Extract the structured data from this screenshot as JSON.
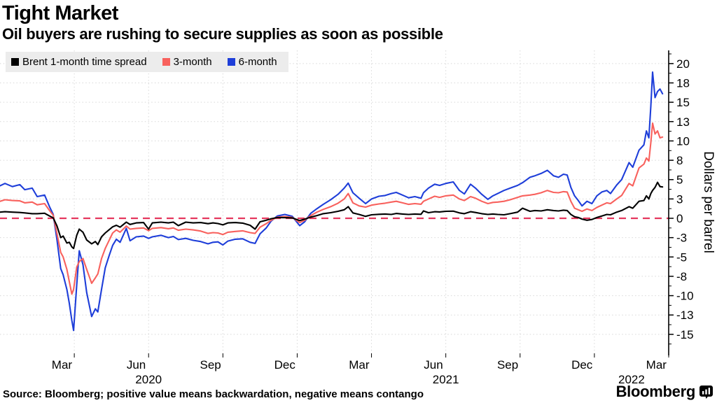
{
  "header": {
    "title": "Tight Market",
    "subtitle": "Oil buyers are rushing to secure supplies as soon as possible"
  },
  "legend": {
    "items": [
      {
        "label": "Brent 1-month time spread",
        "color": "#000000"
      },
      {
        "label": "3-month",
        "color": "#f8615d"
      },
      {
        "label": "6-month",
        "color": "#1e3ed9"
      }
    ]
  },
  "footer": {
    "source": "Source: Bloomberg; positive value means backwardation, negative means contango",
    "brand": "Bloomberg"
  },
  "chart_data": {
    "type": "line",
    "title": "Tight Market",
    "subtitle": "Oil buyers are rushing to secure supplies as soon as possible",
    "xlabel": "",
    "ylabel": "Dollars per barrel",
    "x_unit": "months since Jan 2020 (0 = Jan 2020, 26.75 = late Mar 2022)",
    "xlim": [
      0,
      27
    ],
    "ylim": [
      -17.4,
      21.4
    ],
    "grid": "dotted",
    "legend_position": "top-left",
    "zero_line": {
      "value": 0,
      "style": "dashed",
      "color": "#e5385e"
    },
    "y_ticks": [
      {
        "value": 20,
        "label": "20"
      },
      {
        "value": 17.5,
        "label": "18"
      },
      {
        "value": 15,
        "label": "15"
      },
      {
        "value": 12.5,
        "label": "13"
      },
      {
        "value": 10,
        "label": "10"
      },
      {
        "value": 7.5,
        "label": "8"
      },
      {
        "value": 5,
        "label": "5"
      },
      {
        "value": 2.5,
        "label": "3"
      },
      {
        "value": 0,
        "label": "0"
      },
      {
        "value": -2.5,
        "label": "-3"
      },
      {
        "value": -5,
        "label": "-5"
      },
      {
        "value": -7.5,
        "label": "-8"
      },
      {
        "value": -10,
        "label": "-10"
      },
      {
        "value": -12.5,
        "label": "-13"
      },
      {
        "value": -15,
        "label": "-15"
      }
    ],
    "x_ticks": [
      {
        "t": 2.5,
        "label": "Mar"
      },
      {
        "t": 5.5,
        "label": "Jun"
      },
      {
        "t": 8.5,
        "label": "Sep"
      },
      {
        "t": 11.5,
        "label": "Dec"
      },
      {
        "t": 14.5,
        "label": "Mar"
      },
      {
        "t": 17.5,
        "label": "Jun"
      },
      {
        "t": 20.5,
        "label": "Sep"
      },
      {
        "t": 23.5,
        "label": "Dec"
      },
      {
        "t": 26.5,
        "label": "Mar"
      }
    ],
    "year_labels": [
      {
        "t": 6,
        "label": "2020"
      },
      {
        "t": 18,
        "label": "2021"
      },
      {
        "t": 25.5,
        "label": "2022"
      }
    ],
    "x_gridlines_t": [
      3,
      6,
      9,
      12,
      15,
      18,
      21,
      24
    ],
    "series": [
      {
        "name": "Brent 1-month time spread",
        "color": "#000000",
        "column": 1
      },
      {
        "name": "3-month",
        "color": "#f8615d",
        "column": 2
      },
      {
        "name": "6-month",
        "color": "#1e3ed9",
        "column": 3
      }
    ],
    "columns": [
      "month_index",
      "brent_1m_spread",
      "spread_3m",
      "spread_6m"
    ],
    "points": [
      [
        0,
        0.8,
        2.2,
        4.2
      ],
      [
        0.2,
        0.85,
        2.4,
        4.5
      ],
      [
        0.5,
        0.8,
        2.3,
        4.1
      ],
      [
        0.8,
        0.75,
        2.25,
        4.35
      ],
      [
        1.0,
        0.7,
        2.0,
        3.7
      ],
      [
        1.3,
        0.6,
        2.1,
        3.9
      ],
      [
        1.5,
        0.6,
        1.75,
        2.8
      ],
      [
        1.8,
        0.65,
        1.9,
        3.0
      ],
      [
        2.0,
        0.3,
        1.0,
        1.5
      ],
      [
        2.15,
        0.05,
        0.4,
        0.5
      ],
      [
        2.3,
        -1.0,
        -2.0,
        -2.8
      ],
      [
        2.45,
        -2.5,
        -4.4,
        -6.5
      ],
      [
        2.55,
        -2.3,
        -5.0,
        -7.3
      ],
      [
        2.7,
        -3.2,
        -6.6,
        -9.2
      ],
      [
        2.8,
        -3.1,
        -8.2,
        -11.0
      ],
      [
        2.9,
        -3.7,
        -9.8,
        -13.2
      ],
      [
        2.97,
        -3.9,
        -9.2,
        -14.5
      ],
      [
        3.1,
        -2.2,
        -6.3,
        -8.6
      ],
      [
        3.2,
        -1.4,
        -5.6,
        -4.2
      ],
      [
        3.35,
        -1.8,
        -5.2,
        -6.0
      ],
      [
        3.5,
        -2.8,
        -6.6,
        -9.6
      ],
      [
        3.7,
        -3.3,
        -8.4,
        -12.7
      ],
      [
        3.85,
        -3.0,
        -7.7,
        -11.7
      ],
      [
        3.95,
        -3.4,
        -7.2,
        -12.1
      ],
      [
        4.1,
        -2.4,
        -5.2,
        -9.2
      ],
      [
        4.25,
        -1.9,
        -3.9,
        -6.4
      ],
      [
        4.4,
        -1.5,
        -2.9,
        -4.9
      ],
      [
        4.55,
        -1.1,
        -1.9,
        -3.5
      ],
      [
        4.7,
        -0.9,
        -1.5,
        -2.7
      ],
      [
        4.85,
        -1.15,
        -1.8,
        -3.1
      ],
      [
        5.1,
        -0.5,
        -1.0,
        -1.3
      ],
      [
        5.25,
        -0.8,
        -1.4,
        -2.9
      ],
      [
        5.5,
        -0.6,
        -1.3,
        -2.4
      ],
      [
        5.8,
        -0.55,
        -1.25,
        -2.3
      ],
      [
        6.0,
        -1.4,
        -1.6,
        -2.6
      ],
      [
        6.15,
        -0.6,
        -1.3,
        -2.4
      ],
      [
        6.5,
        -0.5,
        -1.2,
        -2.2
      ],
      [
        6.8,
        -0.6,
        -1.35,
        -2.5
      ],
      [
        7.0,
        -0.5,
        -1.25,
        -2.35
      ],
      [
        7.2,
        -0.95,
        -1.55,
        -2.75
      ],
      [
        7.5,
        -0.5,
        -1.4,
        -2.6
      ],
      [
        7.8,
        -0.6,
        -1.5,
        -2.85
      ],
      [
        8.1,
        -0.55,
        -1.65,
        -3.0
      ],
      [
        8.4,
        -0.7,
        -1.95,
        -3.3
      ],
      [
        8.6,
        -0.6,
        -1.85,
        -3.1
      ],
      [
        8.8,
        -0.68,
        -1.9,
        -3.05
      ],
      [
        9.0,
        -0.85,
        -2.1,
        -3.45
      ],
      [
        9.2,
        -0.6,
        -1.8,
        -2.95
      ],
      [
        9.5,
        -0.55,
        -1.7,
        -2.7
      ],
      [
        9.8,
        -0.62,
        -1.62,
        -2.65
      ],
      [
        10.1,
        -0.9,
        -1.85,
        -3.1
      ],
      [
        10.3,
        -1.4,
        -1.95,
        -3.25
      ],
      [
        10.5,
        -0.45,
        -1.15,
        -2.0
      ],
      [
        10.75,
        -0.25,
        -0.7,
        -1.25
      ],
      [
        10.95,
        -0.05,
        -0.25,
        -0.35
      ],
      [
        11.2,
        0.1,
        0.15,
        0.3
      ],
      [
        11.5,
        0.08,
        0.22,
        0.5
      ],
      [
        11.8,
        0.05,
        0.12,
        0.25
      ],
      [
        12.1,
        -0.3,
        -0.55,
        -0.95
      ],
      [
        12.3,
        -0.12,
        -0.25,
        -0.45
      ],
      [
        12.55,
        0.15,
        0.35,
        0.65
      ],
      [
        12.8,
        0.35,
        0.8,
        1.25
      ],
      [
        13.05,
        0.6,
        1.15,
        1.8
      ],
      [
        13.35,
        0.72,
        1.5,
        2.4
      ],
      [
        13.65,
        0.9,
        1.95,
        3.1
      ],
      [
        13.9,
        1.1,
        2.5,
        3.9
      ],
      [
        14.06,
        1.5,
        3.2,
        4.55
      ],
      [
        14.25,
        0.7,
        2.0,
        3.3
      ],
      [
        14.5,
        0.5,
        1.6,
        2.6
      ],
      [
        14.76,
        0.25,
        1.45,
        1.9
      ],
      [
        15.0,
        0.45,
        1.7,
        2.5
      ],
      [
        15.3,
        0.52,
        1.85,
        2.85
      ],
      [
        15.55,
        0.55,
        1.95,
        2.95
      ],
      [
        15.8,
        0.5,
        2.1,
        3.2
      ],
      [
        16.0,
        0.62,
        2.2,
        3.35
      ],
      [
        16.25,
        0.55,
        2.0,
        3.0
      ],
      [
        16.5,
        0.5,
        1.8,
        2.65
      ],
      [
        16.75,
        0.55,
        1.9,
        2.8
      ],
      [
        17.0,
        0.52,
        1.82,
        2.6
      ],
      [
        17.1,
        0.95,
        2.2,
        3.3
      ],
      [
        17.3,
        0.72,
        2.5,
        3.9
      ],
      [
        17.55,
        0.85,
        2.85,
        4.4
      ],
      [
        17.75,
        0.82,
        2.7,
        4.25
      ],
      [
        18.0,
        0.9,
        2.9,
        4.5
      ],
      [
        18.3,
        0.92,
        3.0,
        4.7
      ],
      [
        18.55,
        0.7,
        2.5,
        3.6
      ],
      [
        18.75,
        0.6,
        2.3,
        3.15
      ],
      [
        19.0,
        0.85,
        2.8,
        4.4
      ],
      [
        19.2,
        0.75,
        2.6,
        3.9
      ],
      [
        19.45,
        0.6,
        2.2,
        3.1
      ],
      [
        19.7,
        0.5,
        1.9,
        2.45
      ],
      [
        19.9,
        0.55,
        2.05,
        2.9
      ],
      [
        20.1,
        0.5,
        2.1,
        3.2
      ],
      [
        20.35,
        0.45,
        2.2,
        3.6
      ],
      [
        20.6,
        0.6,
        2.4,
        3.9
      ],
      [
        20.9,
        0.8,
        2.7,
        4.25
      ],
      [
        21.1,
        1.3,
        2.9,
        4.6
      ],
      [
        21.4,
        0.9,
        3.0,
        5.3
      ],
      [
        21.6,
        1.0,
        3.1,
        5.5
      ],
      [
        21.85,
        0.95,
        3.3,
        5.8
      ],
      [
        22.1,
        1.1,
        3.6,
        6.2
      ],
      [
        22.35,
        1.0,
        3.35,
        5.5
      ],
      [
        22.55,
        0.95,
        3.3,
        5.3
      ],
      [
        22.75,
        1.05,
        3.45,
        5.7
      ],
      [
        22.9,
        1.0,
        3.4,
        5.6
      ],
      [
        23.05,
        0.5,
        2.2,
        4.0
      ],
      [
        23.2,
        0.2,
        1.3,
        2.9
      ],
      [
        23.35,
        0.1,
        1.1,
        2.3
      ],
      [
        23.5,
        -0.1,
        0.9,
        1.6
      ],
      [
        23.7,
        -0.25,
        1.2,
        2.2
      ],
      [
        23.9,
        -0.15,
        1.0,
        1.9
      ],
      [
        24.1,
        0.1,
        1.4,
        2.9
      ],
      [
        24.3,
        0.3,
        1.7,
        3.4
      ],
      [
        24.5,
        0.5,
        2.0,
        3.6
      ],
      [
        24.65,
        0.45,
        1.9,
        3.2
      ],
      [
        24.9,
        0.8,
        2.5,
        4.3
      ],
      [
        25.1,
        1.0,
        2.95,
        5.0
      ],
      [
        25.4,
        1.5,
        4.5,
        7.2
      ],
      [
        25.55,
        1.3,
        4.2,
        6.6
      ],
      [
        25.8,
        2.2,
        6.5,
        8.8
      ],
      [
        26.0,
        2.3,
        7.0,
        9.5
      ],
      [
        26.1,
        2.9,
        7.8,
        11.3
      ],
      [
        26.2,
        2.5,
        7.4,
        10.4
      ],
      [
        26.28,
        3.2,
        9.8,
        14.5
      ],
      [
        26.35,
        3.6,
        12.3,
        18.9
      ],
      [
        26.45,
        4.0,
        10.9,
        15.6
      ],
      [
        26.55,
        4.65,
        11.3,
        16.4
      ],
      [
        26.65,
        4.1,
        10.4,
        16.7
      ],
      [
        26.75,
        4.05,
        10.5,
        16.1
      ]
    ]
  }
}
